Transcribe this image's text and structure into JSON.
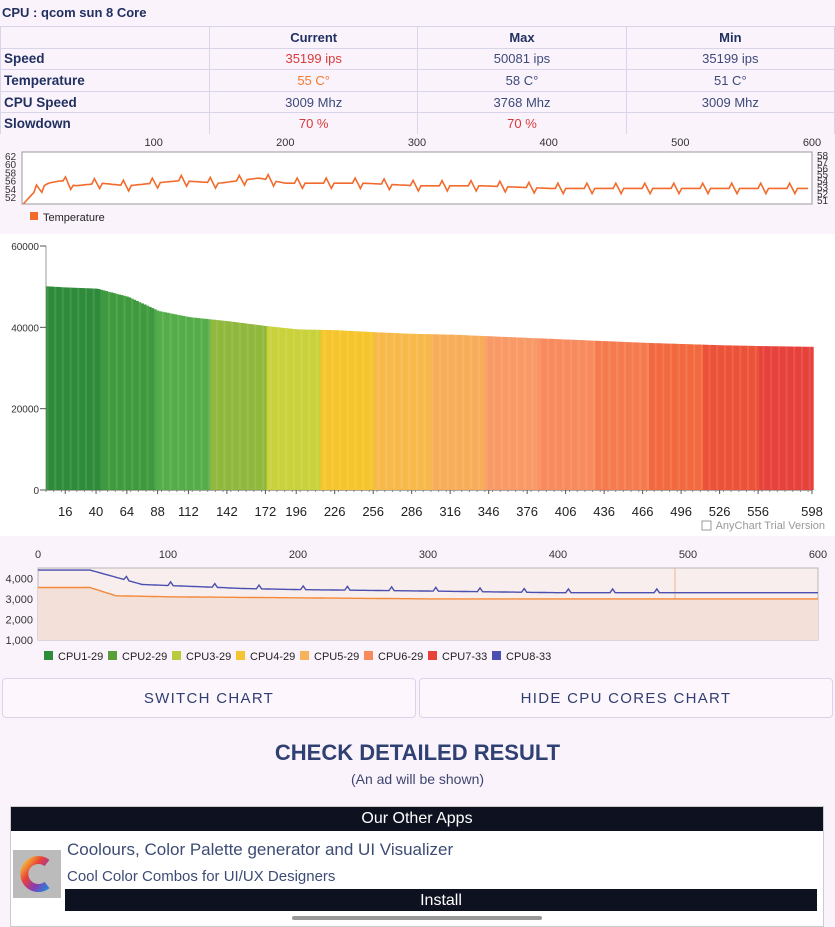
{
  "header": {
    "title": "CPU : qcom sun 8 Core"
  },
  "stats": {
    "columns": [
      "",
      "Current",
      "Max",
      "Min"
    ],
    "rows": [
      {
        "label": "Speed",
        "current": "35199 ips",
        "max": "50081 ips",
        "min": "35199 ips"
      },
      {
        "label": "Temperature",
        "current": "55 C°",
        "max": "58 C°",
        "min": "51 C°"
      },
      {
        "label": "CPU Speed",
        "current": "3009 Mhz",
        "max": "3768 Mhz",
        "min": "3009 Mhz"
      },
      {
        "label": "Slowdown",
        "current": "70 %",
        "max": "70 %",
        "min": ""
      }
    ]
  },
  "temp_chart": {
    "legend": "Temperature",
    "x_ticks": [
      "100",
      "200",
      "300",
      "400",
      "500",
      "600"
    ],
    "y_left": [
      "62",
      "60",
      "58",
      "56",
      "54",
      "52"
    ],
    "y_right": [
      "58",
      "57",
      "56",
      "55",
      "54",
      "53",
      "52",
      "51"
    ],
    "color": "#f26b2c"
  },
  "chart_data": [
    {
      "type": "line",
      "title": "",
      "series": [
        {
          "name": "Temperature",
          "x": [
            1,
            10,
            20,
            30,
            40,
            60,
            80,
            120,
            150,
            180,
            200,
            260,
            300,
            350,
            400,
            450,
            500,
            550,
            598
          ],
          "values": [
            52,
            54.5,
            56,
            56.5,
            55.5,
            56,
            55.5,
            56.5,
            56,
            57,
            56,
            56,
            55.5,
            55.5,
            55,
            55,
            55,
            55,
            55
          ]
        }
      ],
      "ylim": [
        52,
        62
      ]
    },
    {
      "type": "area",
      "title": "",
      "x_ticks": [
        "16",
        "40",
        "64",
        "88",
        "112",
        "142",
        "172",
        "196",
        "226",
        "256",
        "286",
        "316",
        "346",
        "376",
        "406",
        "436",
        "466",
        "496",
        "526",
        "556",
        "598"
      ],
      "y_ticks": [
        "60000",
        "40000",
        "20000",
        "0"
      ],
      "x": [
        1,
        16,
        40,
        64,
        88,
        112,
        142,
        172,
        196,
        226,
        256,
        286,
        316,
        346,
        376,
        406,
        436,
        466,
        496,
        526,
        556,
        598
      ],
      "values": [
        50081,
        49800,
        49500,
        47500,
        44000,
        42500,
        41500,
        40300,
        39500,
        39300,
        38800,
        38400,
        38200,
        37800,
        37400,
        37000,
        36600,
        36200,
        35900,
        35600,
        35400,
        35199
      ],
      "ylim": [
        0,
        60000
      ],
      "watermark": "AnyChart Trial Version"
    },
    {
      "type": "line",
      "title": "",
      "x_ticks": [
        "0",
        "100",
        "200",
        "300",
        "400",
        "500",
        "600"
      ],
      "y_ticks": [
        "4,000",
        "3,000",
        "2,000",
        "1,000"
      ],
      "series": [
        {
          "name": "CPU8-33",
          "x": [
            0,
            40,
            80,
            120,
            160,
            200,
            300,
            400,
            500,
            600
          ],
          "values": [
            4400,
            4400,
            3700,
            3600,
            3500,
            3450,
            3380,
            3300,
            3300,
            3300
          ]
        },
        {
          "name": "CPU6-29",
          "x": [
            0,
            40,
            60,
            100,
            200,
            300,
            400,
            500,
            600
          ],
          "values": [
            3550,
            3550,
            3150,
            3100,
            3050,
            3000,
            3000,
            3000,
            3000
          ]
        }
      ],
      "ylim": [
        1000,
        4500
      ]
    }
  ],
  "cores_legend": [
    {
      "name": "CPU1-29",
      "color": "#2e8b3a"
    },
    {
      "name": "CPU2-29",
      "color": "#5a9e3a"
    },
    {
      "name": "CPU3-29",
      "color": "#b7cc3a"
    },
    {
      "name": "CPU4-29",
      "color": "#f5c431"
    },
    {
      "name": "CPU5-29",
      "color": "#f7b35a"
    },
    {
      "name": "CPU6-29",
      "color": "#f78a5a"
    },
    {
      "name": "CPU7-33",
      "color": "#e8413a"
    },
    {
      "name": "CPU8-33",
      "color": "#4a4fb0"
    }
  ],
  "buttons": {
    "switch": "SWITCH CHART",
    "hide": "HIDE CPU CORES CHART"
  },
  "check": {
    "title": "CHECK DETAILED RESULT",
    "note": "(An ad will be shown)"
  },
  "ad": {
    "heading": "Our Other Apps",
    "app_name": "Coolours, Color Palette generator and UI Visualizer",
    "app_sub": "Cool Color Combos for UI/UX Designers",
    "install": "Install"
  }
}
